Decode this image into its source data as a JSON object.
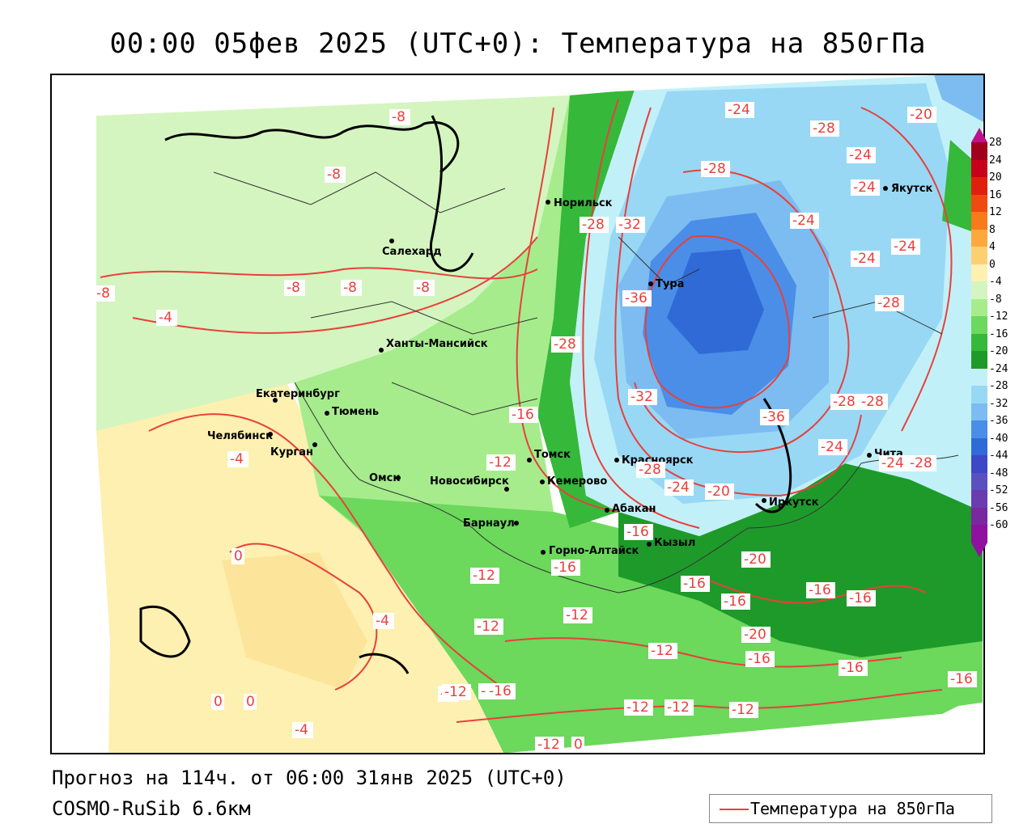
{
  "header": {
    "title": "00:00 05фев 2025 (UTC+0): Температура на 850гПа"
  },
  "footer": {
    "forecast": "Прогноз на 114ч. от 06:00 31янв 2025 (UTC+0)",
    "model": "COSMO-RuSib 6.6км",
    "legend_label": "Температура на 850гПа",
    "legend_color": "#e8403c"
  },
  "colorbar": {
    "labels": [
      "28",
      "24",
      "20",
      "16",
      "12",
      "8",
      "4",
      "0",
      "-4",
      "-8",
      "-12",
      "-16",
      "-20",
      "-24",
      "-28",
      "-32",
      "-36",
      "-40",
      "-44",
      "-48",
      "-52",
      "-56",
      "-60"
    ],
    "colors": [
      "#a0001c",
      "#c8001c",
      "#e0200c",
      "#f04a10",
      "#f87a1a",
      "#fca83c",
      "#fcd070",
      "#fdf0b0",
      "#d4f5c0",
      "#a6ec8c",
      "#6cd85c",
      "#36b83a",
      "#1e9a2a",
      "#c2f0f8",
      "#98d8f5",
      "#7cbcf0",
      "#4a8ee8",
      "#2f6ad6",
      "#3c48c8",
      "#5a50c0",
      "#6a3cb0",
      "#7a28a0",
      "#9010a0"
    ]
  },
  "cities": [
    {
      "name": "Норильск"
    },
    {
      "name": "Салехард"
    },
    {
      "name": "Тура"
    },
    {
      "name": "Якутск"
    },
    {
      "name": "Ханты-Мансийск"
    },
    {
      "name": "Екатеринбург"
    },
    {
      "name": "Тюмень"
    },
    {
      "name": "Челябинск"
    },
    {
      "name": "Курган"
    },
    {
      "name": "Омск"
    },
    {
      "name": "Новосибирск"
    },
    {
      "name": "Томск"
    },
    {
      "name": "Кемерово"
    },
    {
      "name": "Красноярск"
    },
    {
      "name": "Абакан"
    },
    {
      "name": "Барнаул"
    },
    {
      "name": "Кызыл"
    },
    {
      "name": "Горно-Алтайск"
    },
    {
      "name": "Иркутск"
    },
    {
      "name": "Чита"
    }
  ],
  "isotherm_labels": [
    "-8",
    "-8",
    "-8",
    "-8",
    "-8",
    "-8",
    "-4",
    "-4",
    "-4",
    "-4",
    "-4",
    "-24",
    "-28",
    "-24",
    "-20",
    "-28",
    "-24",
    "-24",
    "-28",
    "-32",
    "-24",
    "-24",
    "-36",
    "-28",
    "-28",
    "-32",
    "-28",
    "-28",
    "-36",
    "-24",
    "-28",
    "-24",
    "-16",
    "-12",
    "-28",
    "-24",
    "-20",
    "-16",
    "-20",
    "-12",
    "-16",
    "-16",
    "-16",
    "-16",
    "-16",
    "-12",
    "-12",
    "-12",
    "-20",
    "-16",
    "-12",
    "-16",
    "-16",
    "-12",
    "-12",
    "-12",
    "-16",
    "-12",
    "-12",
    "0",
    "0",
    "0",
    "0"
  ]
}
